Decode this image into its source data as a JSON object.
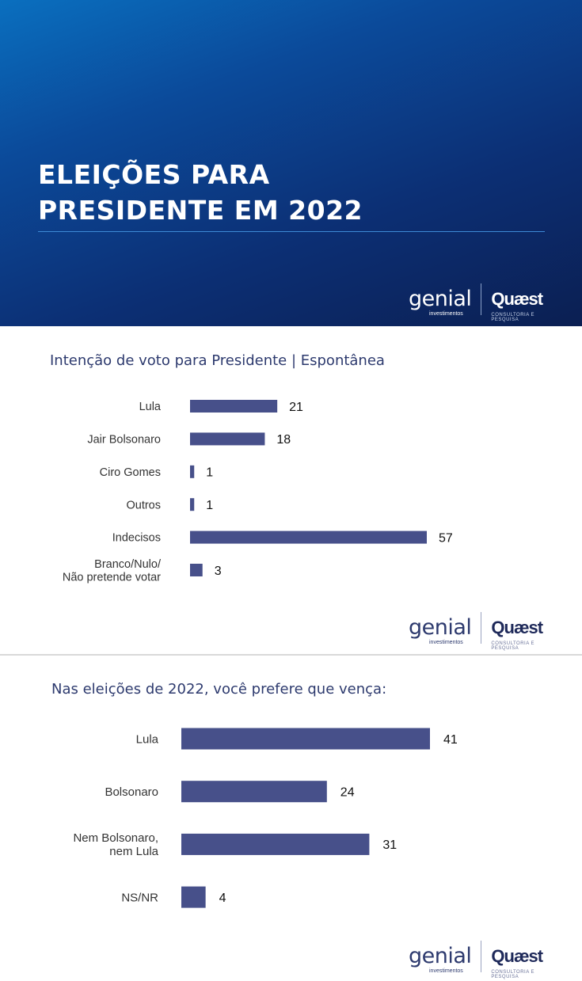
{
  "banner": {
    "title_line1": "ELEIÇÕES PARA",
    "title_line2": "PRESIDENTE EM 2022"
  },
  "logos": {
    "genial": "genial",
    "genial_sub": "investimentos",
    "quaest": "Quæst",
    "quaest_sub": "CONSULTORIA E PESQUISA"
  },
  "colors": {
    "bar": "#47508a",
    "title": "#2d3a6e",
    "banner_dark": "#0b1f52"
  },
  "chart_data": [
    {
      "type": "bar",
      "orientation": "horizontal",
      "title": "Intenção de voto para Presidente | Espontânea",
      "categories": [
        [
          "Lula"
        ],
        [
          "Jair Bolsonaro"
        ],
        [
          "Ciro Gomes"
        ],
        [
          "Outros"
        ],
        [
          "Indecisos"
        ],
        [
          "Branco/Nulo/",
          "Não pretende votar"
        ]
      ],
      "values": [
        21,
        18,
        1,
        1,
        57,
        3
      ],
      "xlim": [
        0,
        57
      ]
    },
    {
      "type": "bar",
      "orientation": "horizontal",
      "title": "Nas eleições de 2022, você prefere que vença:",
      "categories": [
        [
          "Lula"
        ],
        [
          "Bolsonaro"
        ],
        [
          "Nem Bolsonaro,",
          "nem Lula"
        ],
        [
          "NS/NR"
        ]
      ],
      "values": [
        41,
        24,
        31,
        4
      ],
      "xlim": [
        0,
        41
      ]
    }
  ]
}
